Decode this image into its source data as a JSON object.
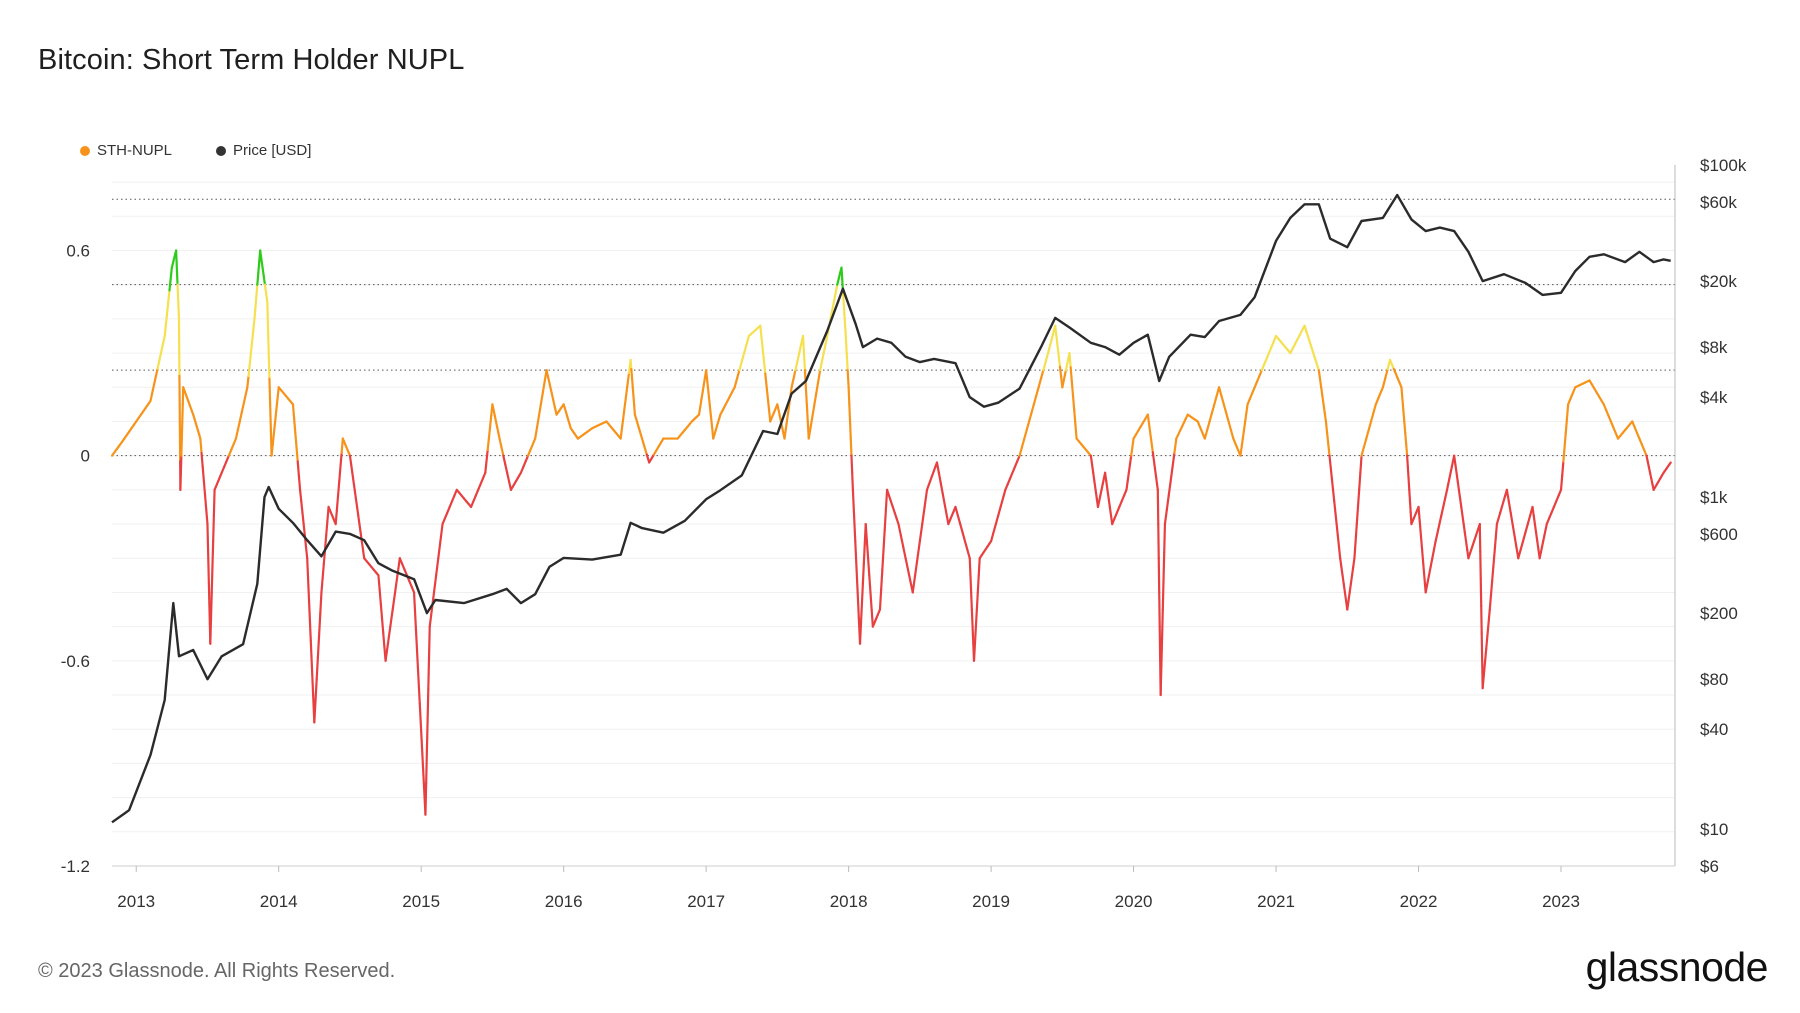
{
  "title": "Bitcoin: Short Term Holder NUPL",
  "legend": [
    {
      "label": "STH-NUPL",
      "color": "#f7931a"
    },
    {
      "label": "Price [USD]",
      "color": "#333333"
    }
  ],
  "footer": "© 2023 Glassnode. All Rights Reserved.",
  "brand": "glassnode",
  "colors": {
    "capitulation": "#e84040",
    "hope": "#f7931a",
    "optimism": "#f5e050",
    "euphoria": "#2ecc1a",
    "price": "#2b2b2b"
  },
  "chart_data": {
    "type": "line",
    "title": "Bitcoin: Short Term Holder NUPL",
    "x_ticks": [
      "2013",
      "2014",
      "2015",
      "2016",
      "2017",
      "2018",
      "2019",
      "2020",
      "2021",
      "2022",
      "2023"
    ],
    "y_left_ticks": [
      "0.6",
      "0",
      "-0.6",
      "-1.2"
    ],
    "y_left_range": [
      -1.2,
      0.85
    ],
    "y_right_ticks": [
      "$100k",
      "$60k",
      "$20k",
      "$8k",
      "$4k",
      "$1k",
      "$600",
      "$200",
      "$80",
      "$40",
      "$10",
      "$6"
    ],
    "y_right_range": [
      6,
      100000
    ],
    "y_right_scale": "log",
    "zone_thresholds": [
      0,
      0.25,
      0.5,
      0.75
    ],
    "series": [
      {
        "name": "STH-NUPL",
        "axis": "left",
        "points": [
          [
            2012.83,
            0.0
          ],
          [
            2012.9,
            0.04
          ],
          [
            2013.0,
            0.1
          ],
          [
            2013.1,
            0.16
          ],
          [
            2013.2,
            0.35
          ],
          [
            2013.25,
            0.55
          ],
          [
            2013.28,
            0.6
          ],
          [
            2013.3,
            0.4
          ],
          [
            2013.31,
            -0.1
          ],
          [
            2013.33,
            0.2
          ],
          [
            2013.4,
            0.12
          ],
          [
            2013.45,
            0.05
          ],
          [
            2013.5,
            -0.2
          ],
          [
            2013.52,
            -0.55
          ],
          [
            2013.55,
            -0.1
          ],
          [
            2013.6,
            -0.05
          ],
          [
            2013.7,
            0.05
          ],
          [
            2013.78,
            0.2
          ],
          [
            2013.83,
            0.4
          ],
          [
            2013.87,
            0.6
          ],
          [
            2013.92,
            0.45
          ],
          [
            2013.95,
            0.0
          ],
          [
            2014.0,
            0.2
          ],
          [
            2014.1,
            0.15
          ],
          [
            2014.15,
            -0.1
          ],
          [
            2014.2,
            -0.3
          ],
          [
            2014.25,
            -0.78
          ],
          [
            2014.3,
            -0.4
          ],
          [
            2014.35,
            -0.15
          ],
          [
            2014.4,
            -0.2
          ],
          [
            2014.45,
            0.05
          ],
          [
            2014.5,
            0.0
          ],
          [
            2014.55,
            -0.15
          ],
          [
            2014.6,
            -0.3
          ],
          [
            2014.7,
            -0.35
          ],
          [
            2014.75,
            -0.6
          ],
          [
            2014.85,
            -0.3
          ],
          [
            2014.95,
            -0.4
          ],
          [
            2015.03,
            -1.05
          ],
          [
            2015.06,
            -0.5
          ],
          [
            2015.15,
            -0.2
          ],
          [
            2015.25,
            -0.1
          ],
          [
            2015.35,
            -0.15
          ],
          [
            2015.45,
            -0.05
          ],
          [
            2015.5,
            0.15
          ],
          [
            2015.55,
            0.05
          ],
          [
            2015.63,
            -0.1
          ],
          [
            2015.7,
            -0.05
          ],
          [
            2015.8,
            0.05
          ],
          [
            2015.88,
            0.25
          ],
          [
            2015.95,
            0.12
          ],
          [
            2016.0,
            0.15
          ],
          [
            2016.05,
            0.08
          ],
          [
            2016.1,
            0.05
          ],
          [
            2016.2,
            0.08
          ],
          [
            2016.3,
            0.1
          ],
          [
            2016.4,
            0.05
          ],
          [
            2016.47,
            0.28
          ],
          [
            2016.5,
            0.12
          ],
          [
            2016.55,
            0.05
          ],
          [
            2016.6,
            -0.02
          ],
          [
            2016.7,
            0.05
          ],
          [
            2016.8,
            0.05
          ],
          [
            2016.9,
            0.1
          ],
          [
            2016.95,
            0.12
          ],
          [
            2017.0,
            0.25
          ],
          [
            2017.05,
            0.05
          ],
          [
            2017.1,
            0.12
          ],
          [
            2017.2,
            0.2
          ],
          [
            2017.3,
            0.35
          ],
          [
            2017.38,
            0.38
          ],
          [
            2017.45,
            0.1
          ],
          [
            2017.5,
            0.15
          ],
          [
            2017.55,
            0.05
          ],
          [
            2017.6,
            0.2
          ],
          [
            2017.68,
            0.35
          ],
          [
            2017.72,
            0.05
          ],
          [
            2017.8,
            0.25
          ],
          [
            2017.85,
            0.35
          ],
          [
            2017.92,
            0.5
          ],
          [
            2017.95,
            0.55
          ],
          [
            2017.98,
            0.35
          ],
          [
            2018.0,
            0.2
          ],
          [
            2018.03,
            -0.1
          ],
          [
            2018.08,
            -0.55
          ],
          [
            2018.12,
            -0.2
          ],
          [
            2018.17,
            -0.5
          ],
          [
            2018.22,
            -0.45
          ],
          [
            2018.27,
            -0.1
          ],
          [
            2018.35,
            -0.2
          ],
          [
            2018.45,
            -0.4
          ],
          [
            2018.55,
            -0.1
          ],
          [
            2018.62,
            -0.02
          ],
          [
            2018.7,
            -0.2
          ],
          [
            2018.75,
            -0.15
          ],
          [
            2018.85,
            -0.3
          ],
          [
            2018.88,
            -0.6
          ],
          [
            2018.92,
            -0.3
          ],
          [
            2019.0,
            -0.25
          ],
          [
            2019.1,
            -0.1
          ],
          [
            2019.2,
            0.0
          ],
          [
            2019.3,
            0.15
          ],
          [
            2019.4,
            0.3
          ],
          [
            2019.45,
            0.38
          ],
          [
            2019.5,
            0.2
          ],
          [
            2019.55,
            0.3
          ],
          [
            2019.6,
            0.05
          ],
          [
            2019.7,
            0.0
          ],
          [
            2019.75,
            -0.15
          ],
          [
            2019.8,
            -0.05
          ],
          [
            2019.85,
            -0.2
          ],
          [
            2019.95,
            -0.1
          ],
          [
            2020.0,
            0.05
          ],
          [
            2020.1,
            0.12
          ],
          [
            2020.17,
            -0.1
          ],
          [
            2020.19,
            -0.7
          ],
          [
            2020.22,
            -0.2
          ],
          [
            2020.3,
            0.05
          ],
          [
            2020.38,
            0.12
          ],
          [
            2020.45,
            0.1
          ],
          [
            2020.5,
            0.05
          ],
          [
            2020.6,
            0.2
          ],
          [
            2020.7,
            0.05
          ],
          [
            2020.75,
            0.0
          ],
          [
            2020.8,
            0.15
          ],
          [
            2020.9,
            0.25
          ],
          [
            2021.0,
            0.35
          ],
          [
            2021.1,
            0.3
          ],
          [
            2021.2,
            0.38
          ],
          [
            2021.3,
            0.25
          ],
          [
            2021.35,
            0.1
          ],
          [
            2021.4,
            -0.1
          ],
          [
            2021.45,
            -0.3
          ],
          [
            2021.5,
            -0.45
          ],
          [
            2021.55,
            -0.3
          ],
          [
            2021.6,
            0.0
          ],
          [
            2021.7,
            0.15
          ],
          [
            2021.75,
            0.2
          ],
          [
            2021.8,
            0.28
          ],
          [
            2021.88,
            0.2
          ],
          [
            2021.92,
            0.0
          ],
          [
            2021.95,
            -0.2
          ],
          [
            2022.0,
            -0.15
          ],
          [
            2022.05,
            -0.4
          ],
          [
            2022.12,
            -0.25
          ],
          [
            2022.2,
            -0.1
          ],
          [
            2022.25,
            0.0
          ],
          [
            2022.3,
            -0.15
          ],
          [
            2022.35,
            -0.3
          ],
          [
            2022.43,
            -0.2
          ],
          [
            2022.45,
            -0.68
          ],
          [
            2022.5,
            -0.45
          ],
          [
            2022.55,
            -0.2
          ],
          [
            2022.62,
            -0.1
          ],
          [
            2022.7,
            -0.3
          ],
          [
            2022.8,
            -0.15
          ],
          [
            2022.85,
            -0.3
          ],
          [
            2022.9,
            -0.2
          ],
          [
            2023.0,
            -0.1
          ],
          [
            2023.05,
            0.15
          ],
          [
            2023.1,
            0.2
          ],
          [
            2023.2,
            0.22
          ],
          [
            2023.3,
            0.15
          ],
          [
            2023.4,
            0.05
          ],
          [
            2023.5,
            0.1
          ],
          [
            2023.6,
            0.0
          ],
          [
            2023.65,
            -0.1
          ],
          [
            2023.72,
            -0.05
          ],
          [
            2023.77,
            -0.02
          ]
        ]
      },
      {
        "name": "Price [USD]",
        "axis": "right",
        "points": [
          [
            2012.83,
            11
          ],
          [
            2012.95,
            13
          ],
          [
            2013.1,
            28
          ],
          [
            2013.2,
            60
          ],
          [
            2013.26,
            230
          ],
          [
            2013.3,
            110
          ],
          [
            2013.4,
            120
          ],
          [
            2013.5,
            80
          ],
          [
            2013.6,
            110
          ],
          [
            2013.75,
            130
          ],
          [
            2013.85,
            300
          ],
          [
            2013.9,
            1000
          ],
          [
            2013.93,
            1150
          ],
          [
            2014.0,
            850
          ],
          [
            2014.1,
            700
          ],
          [
            2014.2,
            550
          ],
          [
            2014.3,
            440
          ],
          [
            2014.4,
            620
          ],
          [
            2014.5,
            600
          ],
          [
            2014.6,
            550
          ],
          [
            2014.7,
            400
          ],
          [
            2014.8,
            360
          ],
          [
            2014.95,
            320
          ],
          [
            2015.04,
            200
          ],
          [
            2015.1,
            240
          ],
          [
            2015.3,
            230
          ],
          [
            2015.5,
            260
          ],
          [
            2015.6,
            280
          ],
          [
            2015.7,
            230
          ],
          [
            2015.8,
            260
          ],
          [
            2015.9,
            380
          ],
          [
            2016.0,
            430
          ],
          [
            2016.2,
            420
          ],
          [
            2016.4,
            450
          ],
          [
            2016.47,
            700
          ],
          [
            2016.55,
            650
          ],
          [
            2016.7,
            610
          ],
          [
            2016.85,
            720
          ],
          [
            2017.0,
            970
          ],
          [
            2017.1,
            1100
          ],
          [
            2017.25,
            1350
          ],
          [
            2017.4,
            2500
          ],
          [
            2017.5,
            2400
          ],
          [
            2017.6,
            4200
          ],
          [
            2017.7,
            5000
          ],
          [
            2017.85,
            10000
          ],
          [
            2017.96,
            18000
          ],
          [
            2018.05,
            11000
          ],
          [
            2018.1,
            8000
          ],
          [
            2018.2,
            9000
          ],
          [
            2018.3,
            8500
          ],
          [
            2018.4,
            7000
          ],
          [
            2018.5,
            6500
          ],
          [
            2018.6,
            6800
          ],
          [
            2018.75,
            6400
          ],
          [
            2018.85,
            4000
          ],
          [
            2018.95,
            3500
          ],
          [
            2019.05,
            3700
          ],
          [
            2019.2,
            4500
          ],
          [
            2019.35,
            8000
          ],
          [
            2019.45,
            12000
          ],
          [
            2019.55,
            10500
          ],
          [
            2019.7,
            8500
          ],
          [
            2019.8,
            8000
          ],
          [
            2019.9,
            7200
          ],
          [
            2020.0,
            8500
          ],
          [
            2020.1,
            9500
          ],
          [
            2020.18,
            5000
          ],
          [
            2020.25,
            7000
          ],
          [
            2020.4,
            9500
          ],
          [
            2020.5,
            9200
          ],
          [
            2020.6,
            11500
          ],
          [
            2020.75,
            12500
          ],
          [
            2020.85,
            16000
          ],
          [
            2021.0,
            35000
          ],
          [
            2021.1,
            48000
          ],
          [
            2021.2,
            58000
          ],
          [
            2021.3,
            58000
          ],
          [
            2021.38,
            36000
          ],
          [
            2021.5,
            32000
          ],
          [
            2021.6,
            46000
          ],
          [
            2021.75,
            48000
          ],
          [
            2021.85,
            66000
          ],
          [
            2021.95,
            47000
          ],
          [
            2022.05,
            40000
          ],
          [
            2022.15,
            42000
          ],
          [
            2022.25,
            40000
          ],
          [
            2022.35,
            30000
          ],
          [
            2022.45,
            20000
          ],
          [
            2022.6,
            22000
          ],
          [
            2022.75,
            19500
          ],
          [
            2022.87,
            16500
          ],
          [
            2023.0,
            17000
          ],
          [
            2023.1,
            23000
          ],
          [
            2023.2,
            28000
          ],
          [
            2023.3,
            29000
          ],
          [
            2023.45,
            26000
          ],
          [
            2023.55,
            30000
          ],
          [
            2023.65,
            26000
          ],
          [
            2023.72,
            27000
          ],
          [
            2023.77,
            26500
          ]
        ]
      }
    ]
  }
}
